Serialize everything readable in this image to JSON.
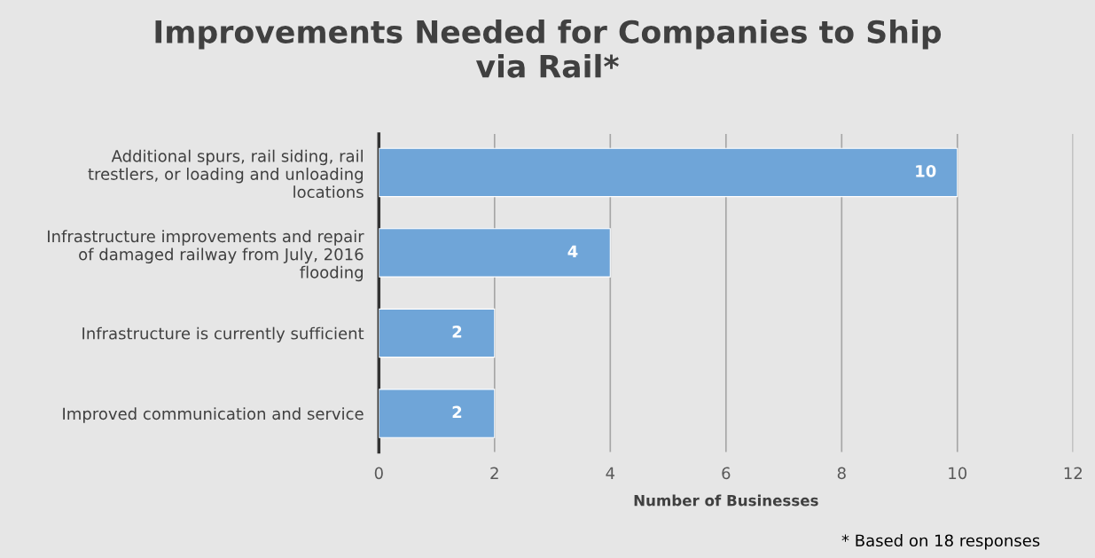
{
  "chart_data": {
    "type": "bar",
    "orientation": "horizontal",
    "title": "Improvements Needed for Companies to Ship\nvia Rail*",
    "xlabel": "Number of Businesses",
    "categories": [
      "Additional spurs, rail siding, rail\ntrestlers, or loading and unloading\nlocations",
      "Infrastructure improvements and repair\nof damaged railway from July, 2016\nflooding",
      "Infrastructure is currently sufficient",
      "Improved communication and service"
    ],
    "values": [
      10,
      4,
      2,
      2
    ],
    "color": "#6fa5d8",
    "xlim": [
      0,
      12
    ],
    "xticks": [
      0,
      2,
      4,
      6,
      8,
      10,
      12
    ],
    "grid": "x",
    "legend": false,
    "data_labels": true,
    "annotations": [
      "* Based on 18 responses"
    ]
  }
}
